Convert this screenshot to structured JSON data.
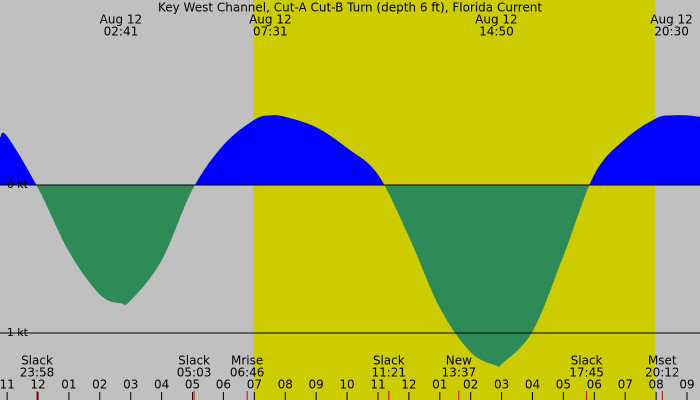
{
  "chart_data": {
    "type": "area",
    "title": "Key West Channel, Cut-A Cut-B Turn (depth 6 ft), Florida Current",
    "x": [
      -1.23,
      -1,
      0,
      1,
      2,
      2.683,
      3,
      4,
      5,
      6,
      7,
      7.517,
      8,
      9,
      10,
      11,
      12,
      13,
      14,
      14.833,
      15,
      16,
      17,
      18,
      19,
      20,
      20.5,
      21,
      21.42
    ],
    "series": [
      {
        "color": "#0000ff",
        "negative_color": "#2e8b57",
        "values": [
          0.32,
          0.33,
          -0.02,
          -0.45,
          -0.74,
          -0.8,
          -0.78,
          -0.51,
          -0.03,
          0.27,
          0.44,
          0.47,
          0.46,
          0.39,
          0.25,
          0.07,
          -0.35,
          -0.83,
          -1.13,
          -1.22,
          -1.21,
          -0.99,
          -0.48,
          0.07,
          0.31,
          0.45,
          0.47,
          0.47,
          0.46
        ]
      }
    ],
    "xlim": [
      -1.23,
      21.42
    ],
    "ylim": [
      -1.453,
      1.25
    ],
    "yticks": [
      {
        "value": 0,
        "label": "0 kt"
      },
      {
        "value": -1,
        "label": "-1 kt"
      }
    ],
    "xticks": [
      {
        "value": -1,
        "label": "11"
      },
      {
        "value": 0,
        "label": "12"
      },
      {
        "value": 1,
        "label": "01"
      },
      {
        "value": 2,
        "label": "02"
      },
      {
        "value": 3,
        "label": "03"
      },
      {
        "value": 4,
        "label": "04"
      },
      {
        "value": 5,
        "label": "05"
      },
      {
        "value": 6,
        "label": "06"
      },
      {
        "value": 7,
        "label": "07"
      },
      {
        "value": 8,
        "label": "08"
      },
      {
        "value": 9,
        "label": "09"
      },
      {
        "value": 10,
        "label": "10"
      },
      {
        "value": 11,
        "label": "11"
      },
      {
        "value": 12,
        "label": "12"
      },
      {
        "value": 13,
        "label": "01"
      },
      {
        "value": 14,
        "label": "02"
      },
      {
        "value": 15,
        "label": "03"
      },
      {
        "value": 16,
        "label": "04"
      },
      {
        "value": 17,
        "label": "05"
      },
      {
        "value": 18,
        "label": "06"
      },
      {
        "value": 19,
        "label": "07"
      },
      {
        "value": 20,
        "label": "08"
      },
      {
        "value": 21,
        "label": "09"
      }
    ],
    "daylight": [
      6.96,
      19.97
    ],
    "daylight_color": "#cccc00",
    "night_color": "#c0c0c0",
    "top_annotations": [
      {
        "date": "Aug 12",
        "time": "02:41",
        "x": 2.683
      },
      {
        "date": "Aug 12",
        "time": "07:31",
        "x": 7.517
      },
      {
        "date": "Aug 12",
        "time": "14:50",
        "x": 14.833
      },
      {
        "date": "Aug 12",
        "time": "20:30",
        "x": 20.5
      }
    ],
    "bottom_annotations": [
      {
        "label": "Slack",
        "time": "23:58",
        "x": -0.033
      },
      {
        "label": "Slack",
        "time": "05:03",
        "x": 5.05
      },
      {
        "label": "Mrise",
        "time": "06:46",
        "x": 6.767
      },
      {
        "label": "Slack",
        "time": "11:21",
        "x": 11.35
      },
      {
        "label": "New",
        "time": "13:37",
        "x": 13.617
      },
      {
        "label": "Slack",
        "time": "17:45",
        "x": 17.75
      },
      {
        "label": "Mset",
        "time": "20:12",
        "x": 20.2
      }
    ]
  }
}
